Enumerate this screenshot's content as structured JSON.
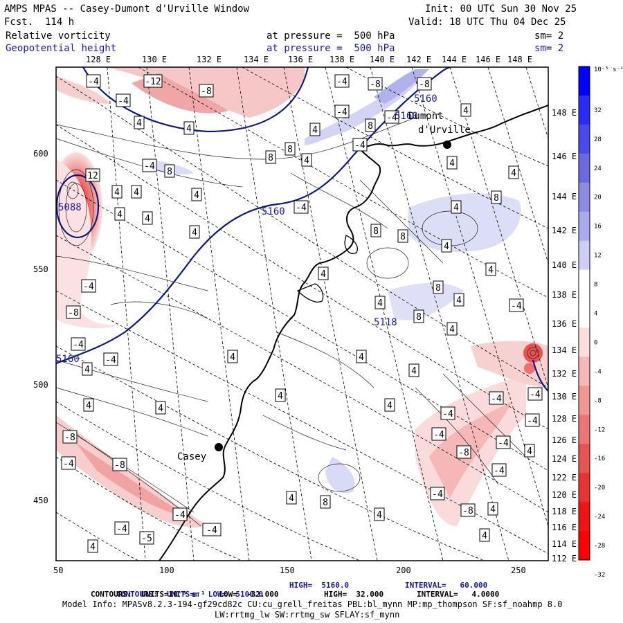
{
  "header": {
    "title": "AMPS MPAS -- Casey-Dumont d'Urville Window",
    "fcst": "Fcst.  114 h",
    "init": "Init: 00 UTC Sun 30 Nov 25",
    "valid": "Valid: 18 UTC Thu 04 Dec 25",
    "field1": "Relative vorticity",
    "field1_level": "at pressure =  500 hPa",
    "field1_sm": "sm= 2",
    "field2": "Geopotential height",
    "field2_level": "at pressure =  500 hPa",
    "field2_sm": "sm= 2"
  },
  "axes": {
    "top_lon_labels": [
      "128 E",
      "130 E",
      "132 E",
      "134 E",
      "136 E",
      "138 E",
      "140 E",
      "142 E",
      "144 E",
      "146 E",
      "148 E"
    ],
    "right_lon_labels": [
      "148 E",
      "146 E",
      "144 E",
      "142 E",
      "140 E",
      "138 E",
      "136 E",
      "134 E",
      "132 E",
      "130 E",
      "128 E",
      "126 E",
      "124 E",
      "122 E",
      "120 E",
      "118 E",
      "116 E",
      "114 E",
      "112 E"
    ],
    "x_ticks": [
      "50",
      "100",
      "150",
      "200",
      "250"
    ],
    "y_ticks": [
      "600",
      "550",
      "500",
      "450"
    ]
  },
  "places": [
    {
      "name": "Casey"
    },
    {
      "name": "Dumont"
    },
    {
      "name": "d'Urville"
    }
  ],
  "height_labels": [
    "5160",
    "5160",
    "5160",
    "5088",
    "5160",
    "5118"
  ],
  "colorbar": {
    "unit": "10⁻⁵ s⁻¹",
    "labels": [
      "32",
      "28",
      "24",
      "20",
      "16",
      "12",
      "8",
      "4",
      "0",
      "-4",
      "-8",
      "-12",
      "-16",
      "-20",
      "-24",
      "-28",
      "-32"
    ],
    "colors": [
      "#0000ff",
      "#2b2bf5",
      "#4a4ae8",
      "#6a6ade",
      "#8b8be3",
      "#aaaaee",
      "#cdcdf5",
      "#ffffff",
      "#ffffff",
      "#fbdede",
      "#f5b8b8",
      "#f09696",
      "#ec7575",
      "#e85454",
      "#e63434",
      "#f01515",
      "#ff0000"
    ]
  },
  "footer": {
    "line1_a": "CONTOURS:  UNITS=m  LOW=  5100.0",
    "line1_b": "HIGH=  5160.0",
    "line1_c": "INTERVAL=   60.000",
    "line2_a": "CONTOURS:  UNITS=10⁻⁵ s⁻¹   LOW=  -32.000",
    "line2_b": "HIGH=  32.000",
    "line2_c": "INTERVAL=   4.0000",
    "line3": "Model Info: MPASv8.2.3-194-gf29cd82c CU:cu_grell_freitas PBL:bl_mynn MP:mp_thompson SF:sf_noahmp 8.0",
    "line4": "LW:rrtmg_lw SW:rrtmg_sw SFLAY:sf_mynn"
  }
}
